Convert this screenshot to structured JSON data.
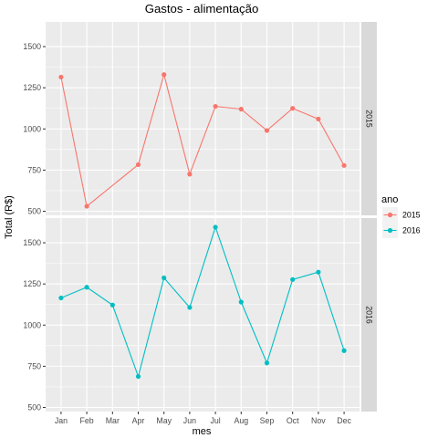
{
  "chart_data": {
    "type": "line",
    "title": "Gastos - alimentação",
    "xlabel": "mes",
    "ylabel": "Total (R$)",
    "categories": [
      "Jan",
      "Feb",
      "Mar",
      "Apr",
      "May",
      "Jun",
      "Jul",
      "Aug",
      "Sep",
      "Oct",
      "Nov",
      "Dec"
    ],
    "yticks": [
      500,
      750,
      1000,
      1250,
      1500
    ],
    "ylim": [
      475,
      1650
    ],
    "grid": true,
    "legend": {
      "title": "ano",
      "position": "right"
    },
    "series": [
      {
        "name": "2015",
        "color": "#F8766D",
        "points": [
          {
            "x": "Jan",
            "y": 1315
          },
          {
            "x": "Feb",
            "y": 530
          },
          {
            "x": "Apr",
            "y": 783
          },
          {
            "x": "May",
            "y": 1330
          },
          {
            "x": "Jun",
            "y": 725
          },
          {
            "x": "Jul",
            "y": 1137
          },
          {
            "x": "Aug",
            "y": 1120
          },
          {
            "x": "Sep",
            "y": 990
          },
          {
            "x": "Oct",
            "y": 1125
          },
          {
            "x": "Nov",
            "y": 1060
          },
          {
            "x": "Dec",
            "y": 778
          }
        ]
      },
      {
        "name": "2016",
        "color": "#00BFC4",
        "points": [
          {
            "x": "Jan",
            "y": 1165
          },
          {
            "x": "Feb",
            "y": 1230
          },
          {
            "x": "Mar",
            "y": 1122
          },
          {
            "x": "Apr",
            "y": 688
          },
          {
            "x": "May",
            "y": 1287
          },
          {
            "x": "Jun",
            "y": 1107
          },
          {
            "x": "Jul",
            "y": 1595
          },
          {
            "x": "Aug",
            "y": 1140
          },
          {
            "x": "Sep",
            "y": 770
          },
          {
            "x": "Oct",
            "y": 1277
          },
          {
            "x": "Nov",
            "y": 1322
          },
          {
            "x": "Dec",
            "y": 845
          }
        ]
      }
    ]
  }
}
